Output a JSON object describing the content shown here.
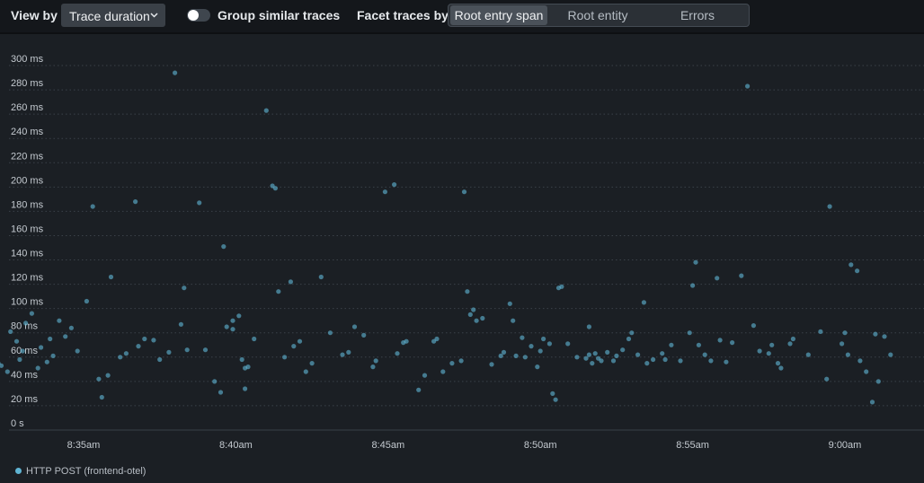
{
  "toolbar": {
    "view_by_label": "View by",
    "view_by_value": "Trace duration",
    "group_label": "Group similar traces",
    "group_enabled": false,
    "facet_label": "Facet traces by",
    "facet_options": [
      "Root entry span",
      "Root entity",
      "Errors"
    ],
    "facet_selected": "Root entry span"
  },
  "colors": {
    "point": "#5fb4d3",
    "background": "#1b1f24",
    "toolbar": "#14171b"
  },
  "chart_data": {
    "type": "scatter",
    "xlabel": "",
    "ylabel": "",
    "x_unit": "minutes since 8:30am",
    "xlim": [
      30.0,
      61.8
    ],
    "ylim": [
      0,
      300
    ],
    "y_ticks": [
      0,
      20,
      40,
      60,
      80,
      100,
      120,
      140,
      160,
      180,
      200,
      220,
      240,
      260,
      280,
      300
    ],
    "y_tick_labels": [
      "0 s",
      "20 ms",
      "40 ms",
      "60 ms",
      "80 ms",
      "100 ms",
      "120 ms",
      "140 ms",
      "160 ms",
      "180 ms",
      "200 ms",
      "220 ms",
      "240 ms",
      "260 ms",
      "280 ms",
      "300 ms"
    ],
    "x_ticks": [
      35,
      40,
      45,
      50,
      55,
      60
    ],
    "x_tick_labels": [
      "8:35am",
      "8:40am",
      "8:45am",
      "8:50am",
      "8:55am",
      "9:00am"
    ],
    "grid": true,
    "legend_position": "bottom-left",
    "series": [
      {
        "name": "HTTP POST (frontend-otel)",
        "points": [
          [
            31.3,
            184
          ],
          [
            31.5,
            120
          ],
          [
            31.1,
            80
          ],
          [
            31.2,
            72
          ],
          [
            31.4,
            69
          ],
          [
            31.6,
            70
          ],
          [
            32.0,
            63
          ],
          [
            32.2,
            55
          ],
          [
            32.3,
            53
          ],
          [
            32.5,
            48
          ],
          [
            32.6,
            81
          ],
          [
            32.8,
            73
          ],
          [
            32.9,
            58
          ],
          [
            33.0,
            65
          ],
          [
            33.1,
            88
          ],
          [
            33.3,
            96
          ],
          [
            33.5,
            51
          ],
          [
            33.6,
            68
          ],
          [
            33.8,
            56
          ],
          [
            34.0,
            61
          ],
          [
            33.9,
            75
          ],
          [
            34.2,
            90
          ],
          [
            34.4,
            77
          ],
          [
            34.6,
            84
          ],
          [
            34.8,
            65
          ],
          [
            35.1,
            106
          ],
          [
            35.3,
            184
          ],
          [
            35.5,
            42
          ],
          [
            35.6,
            27
          ],
          [
            35.8,
            45
          ],
          [
            35.9,
            126
          ],
          [
            36.2,
            60
          ],
          [
            36.4,
            63
          ],
          [
            36.7,
            188
          ],
          [
            36.8,
            69
          ],
          [
            37.0,
            75
          ],
          [
            37.3,
            74
          ],
          [
            37.5,
            58
          ],
          [
            37.8,
            64
          ],
          [
            38.0,
            294
          ],
          [
            38.2,
            87
          ],
          [
            38.3,
            117
          ],
          [
            38.4,
            66
          ],
          [
            38.8,
            187
          ],
          [
            39.0,
            66
          ],
          [
            39.3,
            40
          ],
          [
            39.5,
            31
          ],
          [
            39.6,
            151
          ],
          [
            39.7,
            85
          ],
          [
            39.9,
            90
          ],
          [
            39.9,
            83
          ],
          [
            40.1,
            94
          ],
          [
            40.2,
            58
          ],
          [
            40.3,
            34
          ],
          [
            40.3,
            51
          ],
          [
            40.4,
            52
          ],
          [
            40.6,
            75
          ],
          [
            41.0,
            263
          ],
          [
            41.2,
            201
          ],
          [
            41.3,
            199
          ],
          [
            41.4,
            114
          ],
          [
            41.6,
            60
          ],
          [
            41.8,
            122
          ],
          [
            41.9,
            69
          ],
          [
            42.1,
            73
          ],
          [
            42.3,
            48
          ],
          [
            42.5,
            55
          ],
          [
            42.8,
            126
          ],
          [
            43.1,
            80
          ],
          [
            43.5,
            62
          ],
          [
            43.7,
            64
          ],
          [
            43.9,
            85
          ],
          [
            44.2,
            78
          ],
          [
            44.5,
            52
          ],
          [
            44.6,
            57
          ],
          [
            44.9,
            196
          ],
          [
            45.2,
            202
          ],
          [
            45.3,
            63
          ],
          [
            45.5,
            72
          ],
          [
            45.6,
            73
          ],
          [
            46.0,
            33
          ],
          [
            46.2,
            45
          ],
          [
            46.5,
            73
          ],
          [
            46.6,
            75
          ],
          [
            46.8,
            48
          ],
          [
            47.1,
            55
          ],
          [
            47.4,
            57
          ],
          [
            47.5,
            196
          ],
          [
            47.6,
            114
          ],
          [
            47.7,
            95
          ],
          [
            47.8,
            99
          ],
          [
            47.9,
            90
          ],
          [
            48.1,
            92
          ],
          [
            48.4,
            54
          ],
          [
            48.7,
            61
          ],
          [
            48.8,
            64
          ],
          [
            49.0,
            104
          ],
          [
            49.1,
            90
          ],
          [
            49.2,
            61
          ],
          [
            49.4,
            76
          ],
          [
            49.5,
            60
          ],
          [
            49.7,
            69
          ],
          [
            49.9,
            52
          ],
          [
            50.0,
            65
          ],
          [
            50.1,
            75
          ],
          [
            50.3,
            71
          ],
          [
            50.4,
            30
          ],
          [
            50.5,
            25
          ],
          [
            50.6,
            117
          ],
          [
            50.7,
            118
          ],
          [
            50.9,
            71
          ],
          [
            51.2,
            60
          ],
          [
            51.5,
            59
          ],
          [
            51.6,
            62
          ],
          [
            51.6,
            85
          ],
          [
            51.7,
            55
          ],
          [
            51.8,
            63
          ],
          [
            51.9,
            59
          ],
          [
            52.0,
            57
          ],
          [
            52.2,
            64
          ],
          [
            52.4,
            57
          ],
          [
            52.5,
            61
          ],
          [
            52.7,
            66
          ],
          [
            52.9,
            75
          ],
          [
            53.0,
            80
          ],
          [
            53.2,
            62
          ],
          [
            53.4,
            105
          ],
          [
            53.5,
            55
          ],
          [
            53.7,
            58
          ],
          [
            54.0,
            63
          ],
          [
            54.1,
            58
          ],
          [
            54.3,
            70
          ],
          [
            54.6,
            57
          ],
          [
            54.9,
            80
          ],
          [
            55.0,
            119
          ],
          [
            55.1,
            138
          ],
          [
            55.2,
            70
          ],
          [
            55.4,
            62
          ],
          [
            55.6,
            57
          ],
          [
            55.8,
            125
          ],
          [
            55.9,
            74
          ],
          [
            56.1,
            56
          ],
          [
            56.3,
            72
          ],
          [
            56.6,
            127
          ],
          [
            56.8,
            283
          ],
          [
            57.0,
            86
          ],
          [
            57.2,
            65
          ],
          [
            57.5,
            63
          ],
          [
            57.6,
            70
          ],
          [
            57.8,
            55
          ],
          [
            57.9,
            51
          ],
          [
            58.2,
            71
          ],
          [
            58.3,
            75
          ],
          [
            58.8,
            62
          ],
          [
            59.2,
            81
          ],
          [
            59.4,
            42
          ],
          [
            59.5,
            184
          ],
          [
            59.9,
            71
          ],
          [
            60.0,
            80
          ],
          [
            60.1,
            62
          ],
          [
            60.2,
            136
          ],
          [
            60.4,
            131
          ],
          [
            60.5,
            57
          ],
          [
            60.7,
            48
          ],
          [
            60.9,
            23
          ],
          [
            61.0,
            79
          ],
          [
            61.1,
            40
          ],
          [
            61.3,
            77
          ],
          [
            61.5,
            62
          ]
        ]
      }
    ]
  }
}
